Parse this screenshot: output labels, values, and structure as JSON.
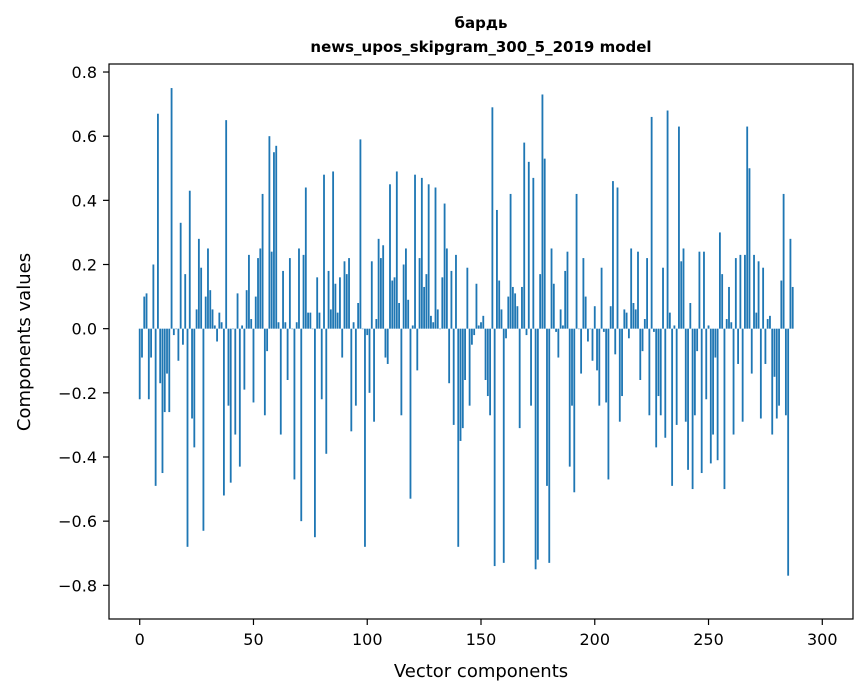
{
  "chart_data": {
    "type": "bar",
    "title_line1": "бардь",
    "title_line2": "news_upos_skipgram_300_5_2019 model",
    "xlabel": "Vector components",
    "ylabel": "Components values",
    "xlim": [
      -13.5,
      313.5
    ],
    "ylim": [
      -0.905,
      0.825
    ],
    "xticks": [
      0,
      50,
      100,
      150,
      200,
      250,
      300
    ],
    "xtick_labels": [
      "0",
      "50",
      "100",
      "150",
      "200",
      "250",
      "300"
    ],
    "yticks": [
      -0.8,
      -0.6,
      -0.4,
      -0.2,
      0.0,
      0.2,
      0.4,
      0.6,
      0.8
    ],
    "ytick_labels": [
      "−0.8",
      "−0.6",
      "−0.4",
      "−0.2",
      "0.0",
      "0.2",
      "0.4",
      "0.6",
      "0.8"
    ],
    "bar_color": "#1f77b4",
    "grid": false,
    "values": [
      -0.22,
      -0.09,
      0.1,
      0.11,
      -0.22,
      -0.09,
      0.2,
      -0.49,
      0.67,
      -0.17,
      -0.45,
      -0.26,
      -0.14,
      -0.26,
      0.75,
      -0.02,
      0.0,
      -0.1,
      0.33,
      -0.05,
      0.17,
      -0.68,
      0.43,
      -0.28,
      -0.37,
      0.06,
      0.28,
      0.19,
      -0.63,
      0.1,
      0.25,
      0.12,
      0.06,
      0.01,
      -0.04,
      0.05,
      0.02,
      -0.52,
      0.65,
      -0.24,
      -0.48,
      0.0,
      -0.33,
      0.11,
      -0.43,
      0.01,
      -0.19,
      0.12,
      0.23,
      0.03,
      -0.23,
      0.1,
      0.22,
      0.25,
      0.42,
      -0.27,
      -0.07,
      0.6,
      0.24,
      0.55,
      0.57,
      0.02,
      -0.33,
      0.18,
      0.02,
      -0.16,
      0.22,
      0.0,
      -0.47,
      0.02,
      0.25,
      -0.6,
      0.23,
      0.44,
      0.05,
      0.05,
      0.0,
      -0.65,
      0.16,
      0.05,
      -0.22,
      0.48,
      -0.39,
      0.18,
      0.06,
      0.49,
      0.14,
      0.05,
      0.16,
      -0.09,
      0.21,
      0.17,
      0.22,
      -0.32,
      0.02,
      -0.24,
      0.08,
      0.59,
      0.0,
      -0.68,
      -0.02,
      -0.2,
      0.21,
      -0.29,
      0.03,
      0.28,
      0.22,
      0.26,
      -0.09,
      -0.11,
      0.45,
      0.15,
      0.16,
      0.49,
      0.08,
      -0.27,
      0.2,
      0.25,
      0.09,
      -0.53,
      0.01,
      0.48,
      -0.13,
      0.22,
      0.47,
      0.13,
      0.17,
      0.45,
      0.04,
      0.02,
      0.44,
      0.06,
      0.0,
      0.16,
      0.39,
      0.25,
      -0.17,
      0.18,
      -0.3,
      0.23,
      -0.68,
      -0.35,
      -0.31,
      -0.16,
      0.19,
      -0.24,
      -0.05,
      -0.02,
      0.14,
      0.01,
      0.02,
      0.04,
      -0.16,
      -0.21,
      -0.27,
      0.69,
      -0.74,
      0.37,
      0.15,
      0.06,
      -0.73,
      -0.03,
      0.1,
      0.42,
      0.13,
      0.11,
      0.07,
      -0.31,
      0.13,
      0.58,
      -0.02,
      0.52,
      -0.24,
      0.47,
      -0.75,
      -0.72,
      0.17,
      0.73,
      0.53,
      -0.49,
      -0.73,
      0.25,
      0.14,
      -0.01,
      -0.09,
      0.06,
      0.01,
      0.18,
      0.24,
      -0.43,
      -0.24,
      -0.51,
      0.42,
      0.0,
      -0.14,
      0.22,
      0.1,
      -0.04,
      0.0,
      -0.1,
      0.07,
      -0.13,
      -0.24,
      0.19,
      -0.01,
      -0.23,
      -0.47,
      0.07,
      0.46,
      -0.08,
      0.44,
      -0.29,
      -0.21,
      0.06,
      0.05,
      -0.03,
      0.25,
      0.08,
      0.06,
      0.24,
      -0.16,
      -0.07,
      0.03,
      0.22,
      -0.27,
      0.66,
      -0.01,
      -0.37,
      -0.21,
      -0.27,
      0.19,
      -0.34,
      0.68,
      0.05,
      -0.49,
      0.01,
      -0.3,
      0.63,
      0.21,
      0.25,
      -0.29,
      -0.44,
      0.08,
      -0.5,
      -0.27,
      -0.07,
      0.24,
      -0.45,
      0.24,
      -0.22,
      0.01,
      -0.42,
      -0.33,
      -0.09,
      -0.41,
      0.3,
      0.17,
      -0.5,
      0.03,
      0.13,
      0.02,
      -0.33,
      0.22,
      -0.11,
      0.23,
      -0.29,
      0.23,
      0.63,
      0.5,
      -0.14,
      0.23,
      0.05,
      0.21,
      -0.28,
      0.19,
      -0.11,
      0.03,
      0.04,
      -0.33,
      -0.15,
      -0.28,
      -0.24,
      0.15,
      0.42,
      -0.27,
      -0.77,
      0.28,
      0.13
    ]
  }
}
